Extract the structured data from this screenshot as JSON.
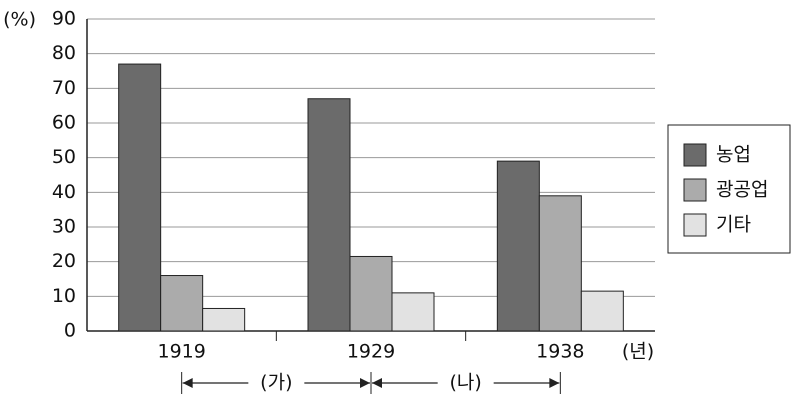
{
  "chart_data": {
    "type": "bar",
    "y_label": "(%)",
    "x_label": "(년)",
    "categories": [
      "1919",
      "1929",
      "1938"
    ],
    "series": [
      {
        "name": "농업",
        "color": "#6b6b6b",
        "values": [
          77,
          67,
          49
        ]
      },
      {
        "name": "광공업",
        "color": "#ababab",
        "values": [
          16,
          21.5,
          39
        ]
      },
      {
        "name": "기타",
        "color": "#e2e2e2",
        "values": [
          6.5,
          11,
          11.5
        ]
      }
    ],
    "ylim": [
      0,
      90
    ],
    "yticks": [
      0,
      10,
      20,
      30,
      40,
      50,
      60,
      70,
      80,
      90
    ],
    "grid": true,
    "legend": "right",
    "annotations": [
      "(가)",
      "(나)"
    ]
  }
}
